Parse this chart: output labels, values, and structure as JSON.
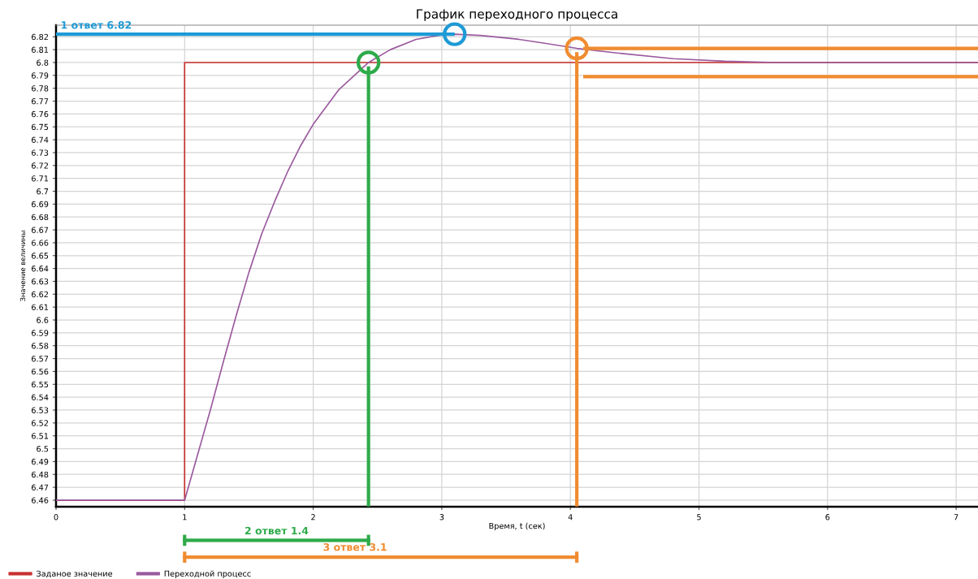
{
  "chart_data": {
    "type": "line",
    "title": "График переходного процесса",
    "xlabel": "Время, t (сек)",
    "ylabel": "Значение величины",
    "xlim": [
      0,
      7.17
    ],
    "xticks": [
      0,
      1,
      2,
      3,
      4,
      5,
      6,
      7
    ],
    "ylim": [
      6.455,
      6.829
    ],
    "yticks": [
      6.46,
      6.47,
      6.48,
      6.49,
      6.5,
      6.51,
      6.52,
      6.53,
      6.54,
      6.55,
      6.56,
      6.57,
      6.58,
      6.59,
      6.6,
      6.61,
      6.62,
      6.63,
      6.64,
      6.65,
      6.66,
      6.67,
      6.68,
      6.69,
      6.7,
      6.71,
      6.72,
      6.73,
      6.74,
      6.75,
      6.76,
      6.77,
      6.78,
      6.79,
      6.8,
      6.81,
      6.82
    ],
    "grid": true,
    "legend": "bottom",
    "series": [
      {
        "name": "Заданое значение",
        "color": "#c8302e",
        "x": [
          0,
          1,
          1,
          7.17
        ],
        "values": [
          6.46,
          6.46,
          6.8,
          6.8
        ]
      },
      {
        "name": "Переходной процесс",
        "color": "#9a5a9e",
        "x": [
          0,
          1,
          1.1,
          1.2,
          1.3,
          1.4,
          1.5,
          1.6,
          1.7,
          1.8,
          1.9,
          2.0,
          2.2,
          2.43,
          2.6,
          2.8,
          3.0,
          3.1,
          3.3,
          3.6,
          3.8,
          4.05,
          4.4,
          4.8,
          5.2,
          5.6,
          6,
          7.17
        ],
        "values": [
          6.46,
          6.46,
          6.495,
          6.53,
          6.567,
          6.603,
          6.637,
          6.667,
          6.692,
          6.715,
          6.735,
          6.752,
          6.779,
          6.8,
          6.81,
          6.818,
          6.8215,
          6.822,
          6.821,
          6.818,
          6.815,
          6.811,
          6.807,
          6.803,
          6.801,
          6.8,
          6.8,
          6.8
        ]
      },
      {
        "color": "#1e9ad6",
        "x": [
          0,
          3.1
        ],
        "values": [
          6.822,
          6.822
        ]
      },
      {
        "color": "#2eaa4a",
        "x": [
          2.43,
          2.43
        ],
        "values": [
          6.455,
          6.797
        ]
      },
      {
        "color": "#f08c30",
        "x": [
          4.05,
          4.05
        ],
        "values": [
          6.455,
          6.808
        ]
      },
      {
        "color": "#f08c30",
        "x": [
          4.1,
          7.17
        ],
        "values": [
          6.811,
          6.811
        ]
      },
      {
        "color": "#f08c30",
        "x": [
          4.1,
          7.17
        ],
        "values": [
          6.789,
          6.789
        ]
      },
      {
        "type": "scatter",
        "marker": "circle",
        "colors": [
          "#1e9ad6",
          "#2eaa4a",
          "#f08c30"
        ],
        "x": [
          3.1,
          2.43,
          4.05
        ],
        "values": [
          6.822,
          6.8,
          6.811
        ]
      }
    ],
    "annotations": [
      {
        "text": "1 ответ 6.82",
        "x": 0,
        "y": 6.822
      },
      "2 ответ 1.4",
      "3 ответ 3.1"
    ]
  }
}
